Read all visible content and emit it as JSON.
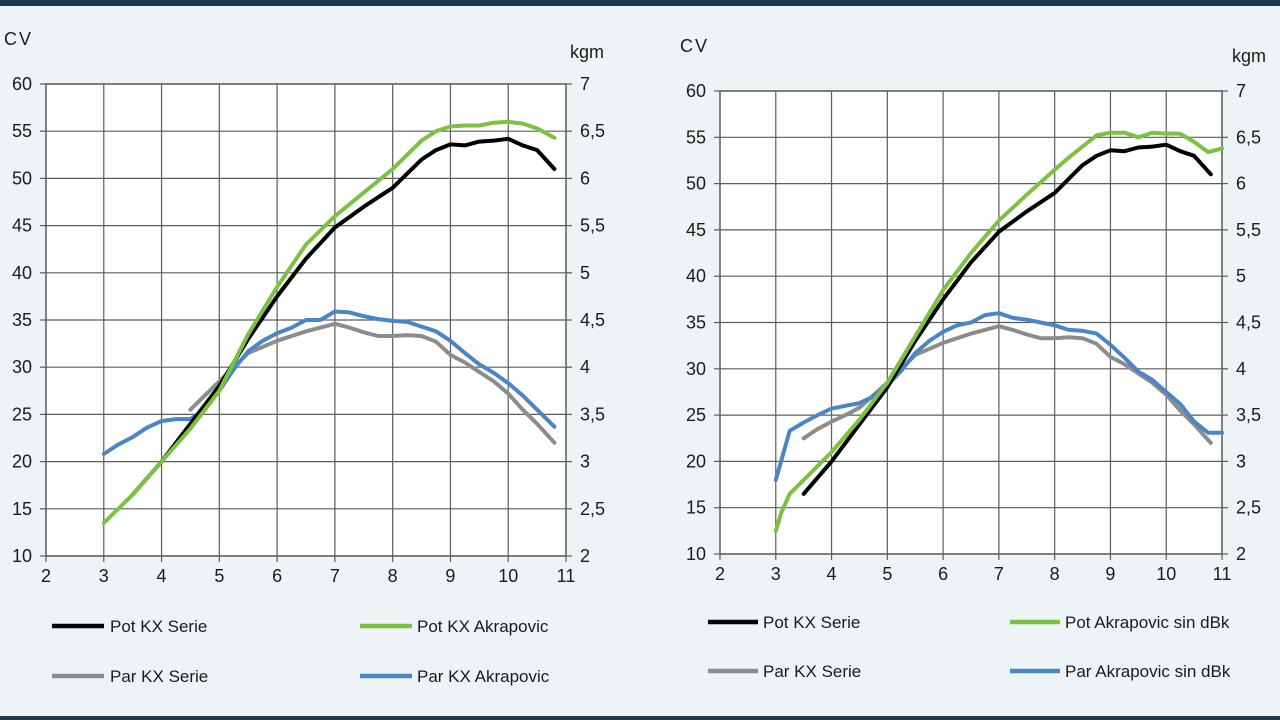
{
  "colors": {
    "background": "#eef3f6",
    "frame": "#1e3a4c",
    "grid": "#5c5c5c",
    "black": "#000000",
    "green": "#7cc242",
    "gray": "#8c8c8c",
    "blue": "#4a86c5"
  },
  "chart_data": [
    {
      "type": "line",
      "title": "",
      "xlabel": "",
      "ylabel": "CV",
      "y2label": "kgm",
      "xlim": [
        2,
        11
      ],
      "ylim": [
        10,
        60
      ],
      "y2lim": [
        2,
        7
      ],
      "x_ticks": [
        "2",
        "3",
        "4",
        "5",
        "6",
        "7",
        "8",
        "9",
        "10",
        "11"
      ],
      "y_ticks": [
        "10",
        "15",
        "20",
        "25",
        "30",
        "35",
        "40",
        "45",
        "50",
        "55",
        "60"
      ],
      "y2_ticks": [
        "2",
        "2,5",
        "3",
        "3,5",
        "4",
        "4,5",
        "5",
        "5,5",
        "6",
        "6,5",
        "7"
      ],
      "grid": true,
      "legend_position": "bottom",
      "series": [
        {
          "name": "Pot  KX Serie",
          "color_key": "black",
          "axis": "left",
          "x": [
            3.5,
            4,
            4.5,
            5,
            5.5,
            6,
            6.5,
            7,
            7.5,
            8,
            8.25,
            8.5,
            8.75,
            9,
            9.25,
            9.5,
            9.75,
            10,
            10.25,
            10.5,
            10.8
          ],
          "y": [
            16.5,
            20,
            24,
            28,
            33,
            37.5,
            41.5,
            44.8,
            47,
            49,
            50.5,
            52,
            53,
            53.6,
            53.5,
            53.9,
            54,
            54.2,
            53.5,
            53,
            51
          ]
        },
        {
          "name": "Pot  KX Akrapovic",
          "color_key": "green",
          "axis": "left",
          "x": [
            3,
            3.5,
            4,
            4.5,
            5,
            5.5,
            6,
            6.5,
            7,
            7.5,
            8,
            8.25,
            8.5,
            8.75,
            9,
            9.25,
            9.5,
            9.75,
            10,
            10.25,
            10.5,
            10.8
          ],
          "y": [
            13.5,
            16.5,
            20,
            23.5,
            27.5,
            33.5,
            38.5,
            43,
            46,
            48.5,
            51,
            52.5,
            54,
            55,
            55.5,
            55.6,
            55.6,
            55.9,
            56,
            55.8,
            55.3,
            54.3
          ]
        },
        {
          "name": "Par  KX Serie",
          "color_key": "gray",
          "axis": "right",
          "x": [
            4.5,
            5,
            5.5,
            6,
            6.5,
            7,
            7.25,
            7.5,
            7.75,
            8,
            8.25,
            8.5,
            8.75,
            9,
            9.25,
            9.5,
            9.75,
            10,
            10.25,
            10.5,
            10.8
          ],
          "y": [
            3.55,
            3.85,
            4.15,
            4.28,
            4.38,
            4.46,
            4.42,
            4.37,
            4.33,
            4.33,
            4.34,
            4.33,
            4.27,
            4.13,
            4.05,
            3.95,
            3.85,
            3.72,
            3.55,
            3.4,
            3.2
          ]
        },
        {
          "name": "Par  KX Akrapovic",
          "color_key": "blue",
          "axis": "right",
          "x": [
            3,
            3.25,
            3.5,
            3.75,
            4,
            4.25,
            4.5,
            4.75,
            5,
            5.25,
            5.5,
            5.75,
            6,
            6.25,
            6.5,
            6.75,
            7,
            7.25,
            7.5,
            7.75,
            8,
            8.25,
            8.5,
            8.75,
            9,
            9.25,
            9.5,
            9.75,
            10,
            10.25,
            10.5,
            10.8
          ],
          "y": [
            3.08,
            3.18,
            3.26,
            3.36,
            3.43,
            3.45,
            3.45,
            3.55,
            3.75,
            3.98,
            4.17,
            4.28,
            4.36,
            4.42,
            4.5,
            4.5,
            4.59,
            4.58,
            4.54,
            4.51,
            4.49,
            4.48,
            4.43,
            4.38,
            4.28,
            4.15,
            4.03,
            3.94,
            3.83,
            3.7,
            3.55,
            3.37
          ]
        }
      ]
    },
    {
      "type": "line",
      "title": "",
      "xlabel": "",
      "ylabel": "CV",
      "y2label": "kgm",
      "xlim": [
        2,
        11
      ],
      "ylim": [
        10,
        60
      ],
      "y2lim": [
        2,
        7
      ],
      "x_ticks": [
        "2",
        "3",
        "4",
        "5",
        "6",
        "7",
        "8",
        "9",
        "10",
        "11"
      ],
      "y_ticks": [
        "10",
        "15",
        "20",
        "25",
        "30",
        "35",
        "40",
        "45",
        "50",
        "55",
        "60"
      ],
      "y2_ticks": [
        "2",
        "2,5",
        "3",
        "3,5",
        "4",
        "4,5",
        "5",
        "5,5",
        "6",
        "6,5",
        "7"
      ],
      "grid": true,
      "legend_position": "bottom",
      "series": [
        {
          "name": "Pot  KX Serie",
          "color_key": "black",
          "axis": "left",
          "x": [
            3.5,
            4,
            4.5,
            5,
            5.5,
            6,
            6.5,
            7,
            7.5,
            8,
            8.25,
            8.5,
            8.75,
            9,
            9.25,
            9.5,
            9.75,
            10,
            10.25,
            10.5,
            10.8
          ],
          "y": [
            16.5,
            20,
            24,
            28,
            33,
            37.5,
            41.5,
            44.8,
            47,
            49,
            50.5,
            52,
            53,
            53.6,
            53.5,
            53.9,
            54,
            54.2,
            53.5,
            53,
            51
          ]
        },
        {
          "name": "Pot  Akrapovic sin dBk",
          "color_key": "green",
          "axis": "left",
          "x": [
            3,
            3.1,
            3.25,
            3.5,
            4,
            4.5,
            5,
            5.5,
            6,
            6.5,
            7,
            7.5,
            8,
            8.25,
            8.5,
            8.75,
            9,
            9.25,
            9.5,
            9.75,
            10,
            10.25,
            10.5,
            10.75,
            11
          ],
          "y": [
            12.5,
            14.5,
            16.5,
            18,
            21,
            24.5,
            28.5,
            33.5,
            38.5,
            42.5,
            46,
            48.8,
            51.5,
            52.8,
            54,
            55.2,
            55.5,
            55.5,
            55,
            55.5,
            55.4,
            55.4,
            54.5,
            53.4,
            53.8
          ]
        },
        {
          "name": "Par  KX Serie",
          "color_key": "gray",
          "axis": "right",
          "x": [
            3.5,
            3.75,
            4,
            4.25,
            4.5,
            5,
            5.5,
            6,
            6.5,
            7,
            7.25,
            7.5,
            7.75,
            8,
            8.25,
            8.5,
            8.75,
            9,
            9.25,
            9.5,
            9.75,
            10,
            10.25,
            10.5,
            10.8
          ],
          "y": [
            3.25,
            3.35,
            3.43,
            3.5,
            3.58,
            3.85,
            4.15,
            4.28,
            4.38,
            4.46,
            4.42,
            4.37,
            4.33,
            4.33,
            4.34,
            4.33,
            4.27,
            4.13,
            4.05,
            3.95,
            3.85,
            3.72,
            3.55,
            3.4,
            3.2
          ]
        },
        {
          "name": "Par  Akrapovic sin dBk",
          "color_key": "blue",
          "axis": "right",
          "x": [
            3,
            3.25,
            3.5,
            3.75,
            4,
            4.25,
            4.5,
            4.75,
            5,
            5.25,
            5.5,
            5.75,
            6,
            6.25,
            6.5,
            6.75,
            7,
            7.25,
            7.5,
            7.75,
            8,
            8.25,
            8.5,
            8.75,
            9,
            9.25,
            9.5,
            9.75,
            10,
            10.25,
            10.5,
            10.75,
            11
          ],
          "y": [
            2.8,
            3.33,
            3.42,
            3.5,
            3.57,
            3.6,
            3.63,
            3.7,
            3.82,
            3.98,
            4.17,
            4.3,
            4.4,
            4.47,
            4.5,
            4.58,
            4.6,
            4.55,
            4.53,
            4.5,
            4.47,
            4.42,
            4.41,
            4.38,
            4.26,
            4.12,
            3.97,
            3.88,
            3.75,
            3.62,
            3.43,
            3.31,
            3.31
          ]
        }
      ]
    }
  ]
}
